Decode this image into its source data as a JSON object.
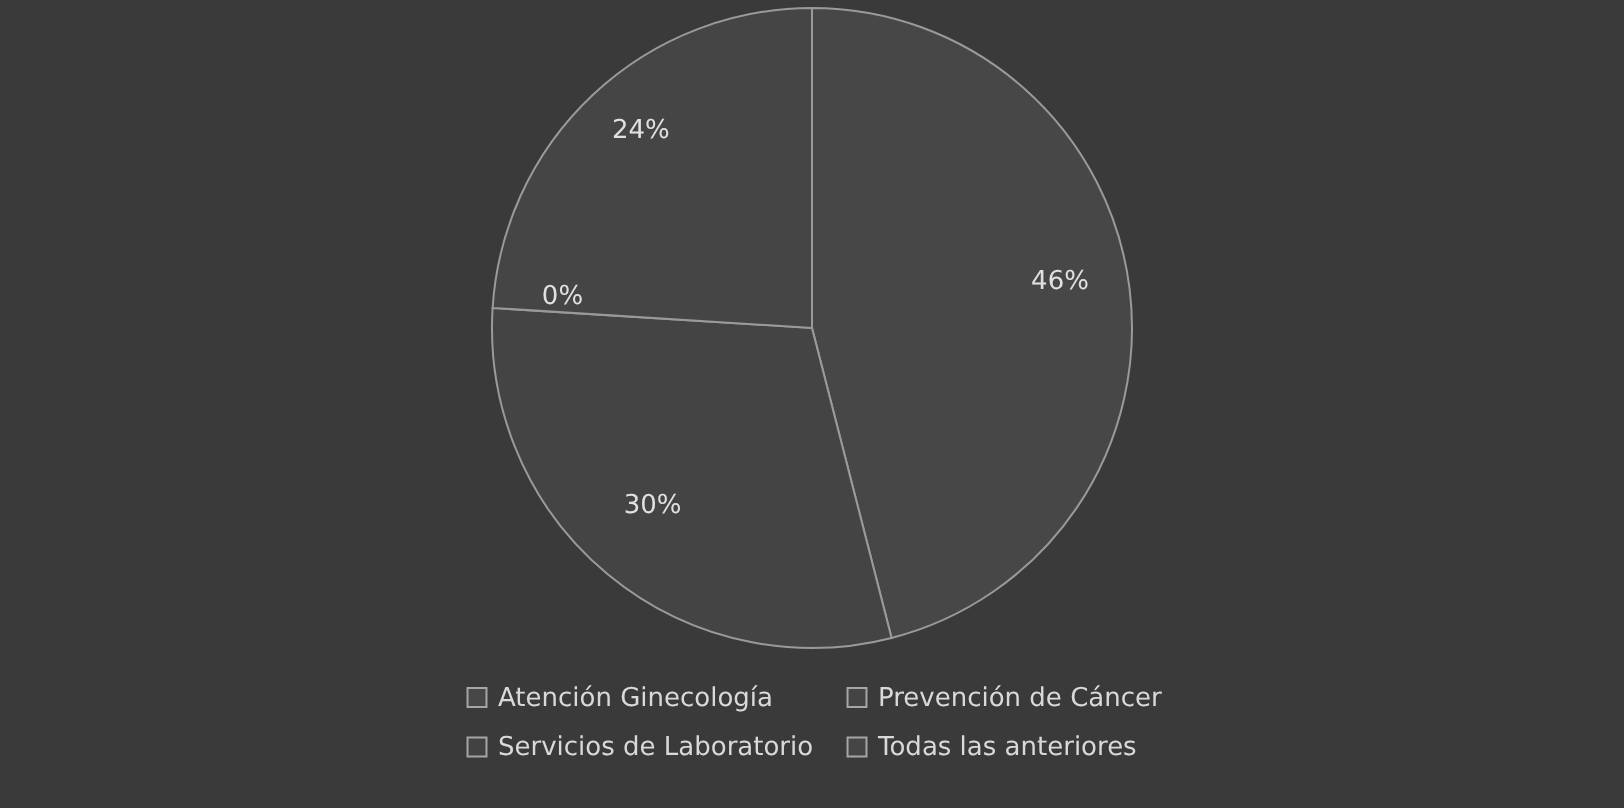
{
  "chart_data": {
    "type": "pie",
    "categories": [
      "Atención Ginecología",
      "Prevención de Cáncer",
      "Servicios de Laboratorio",
      "Todas las anteriores"
    ],
    "values": [
      46,
      30,
      0,
      24
    ],
    "colors": [
      "#474747",
      "#444444",
      "#424242",
      "#454545"
    ],
    "value_labels": [
      "46%",
      "30%",
      "0%",
      "24%"
    ],
    "legend": "bottom"
  }
}
